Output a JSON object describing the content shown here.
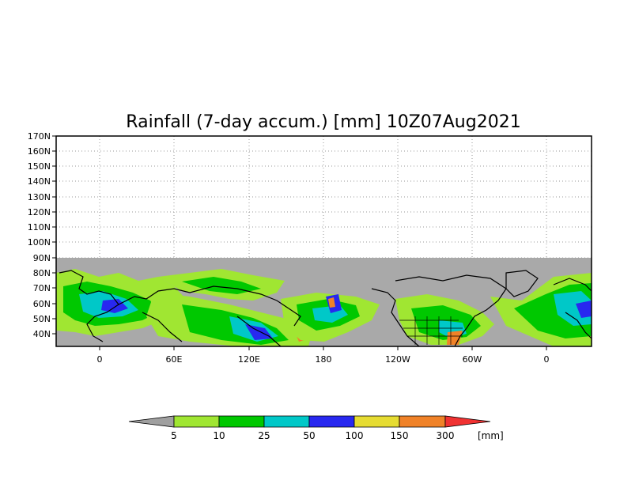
{
  "title": "Rainfall (7-day accum.) [mm] 10Z07Aug2021",
  "y_ticks": [
    "170N",
    "160N",
    "150N",
    "140N",
    "130N",
    "120N",
    "110N",
    "100N",
    "90N",
    "80N",
    "70N",
    "60N",
    "50N",
    "40N"
  ],
  "x_ticks": [
    "0",
    "60E",
    "120E",
    "180",
    "120W",
    "60W",
    "0"
  ],
  "colorbar": {
    "labels": [
      "5",
      "10",
      "25",
      "50",
      "100",
      "150",
      "300"
    ],
    "unit": "[mm]",
    "colors": [
      "#a0a0a0",
      "#a0e632",
      "#00c800",
      "#00c8c8",
      "#2828f0",
      "#e6dc32",
      "#f08228",
      "#f03232"
    ]
  },
  "colors": {
    "no_data": "#a9a9a9",
    "coast": "#000000"
  }
}
